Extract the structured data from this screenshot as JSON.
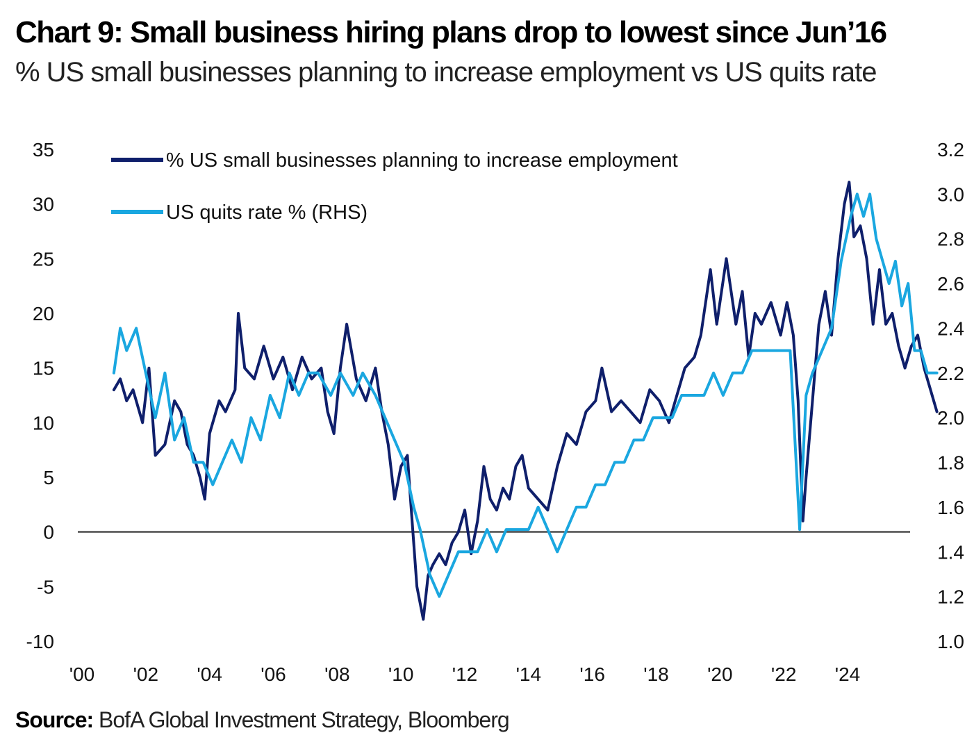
{
  "title": "Chart 9: Small business hiring plans drop to lowest since Jun’16",
  "subtitle": "% US small businesses planning to increase employment vs US quits rate",
  "source_label": "Source:",
  "source_text": " BofA Global Investment Strategy, Bloomberg",
  "chart_data": {
    "type": "line",
    "title": "Chart 9: Small business hiring plans drop to lowest since Jun’16",
    "subtitle": "% US small businesses planning to increase employment vs US quits rate",
    "x_ticks": [
      "'00",
      "'02",
      "'04",
      "'06",
      "'08",
      "'10",
      "'12",
      "'14",
      "'16",
      "'18",
      "'20",
      "'22",
      "'24"
    ],
    "x_range": [
      2000,
      2026
    ],
    "y_left": {
      "range": [
        -10,
        35
      ],
      "ticks": [
        "35",
        "30",
        "25",
        "20",
        "15",
        "10",
        "5",
        "0",
        "-5",
        "-10"
      ]
    },
    "y_right": {
      "range": [
        1.0,
        3.2
      ],
      "ticks": [
        "3.2",
        "3.0",
        "2.8",
        "2.6",
        "2.4",
        "2.2",
        "2.0",
        "1.8",
        "1.6",
        "1.4",
        "1.2",
        "1.0"
      ]
    },
    "legend_placement": "top-left",
    "zero_line": true,
    "series": [
      {
        "name": "% US small businesses planning to increase employment",
        "axis": "left",
        "color": "#0f1f6b",
        "points": [
          [
            2001.0,
            13
          ],
          [
            2001.2,
            14
          ],
          [
            2001.4,
            12
          ],
          [
            2001.6,
            13
          ],
          [
            2001.9,
            10
          ],
          [
            2002.1,
            15
          ],
          [
            2002.3,
            7
          ],
          [
            2002.6,
            8
          ],
          [
            2002.9,
            12
          ],
          [
            2003.1,
            11
          ],
          [
            2003.3,
            8
          ],
          [
            2003.5,
            7
          ],
          [
            2003.7,
            5
          ],
          [
            2003.85,
            3
          ],
          [
            2004.0,
            9
          ],
          [
            2004.3,
            12
          ],
          [
            2004.5,
            11
          ],
          [
            2004.8,
            13
          ],
          [
            2004.9,
            20
          ],
          [
            2005.1,
            15
          ],
          [
            2005.4,
            14
          ],
          [
            2005.7,
            17
          ],
          [
            2006.0,
            14
          ],
          [
            2006.3,
            16
          ],
          [
            2006.6,
            13
          ],
          [
            2006.9,
            16
          ],
          [
            2007.2,
            14
          ],
          [
            2007.5,
            15
          ],
          [
            2007.7,
            11
          ],
          [
            2007.9,
            9
          ],
          [
            2008.1,
            15
          ],
          [
            2008.3,
            19
          ],
          [
            2008.6,
            14
          ],
          [
            2008.9,
            12
          ],
          [
            2009.2,
            15
          ],
          [
            2009.4,
            11
          ],
          [
            2009.6,
            8
          ],
          [
            2009.8,
            3
          ],
          [
            2010.0,
            6
          ],
          [
            2010.2,
            7
          ],
          [
            2010.3,
            3
          ],
          [
            2010.5,
            -5
          ],
          [
            2010.7,
            -8
          ],
          [
            2010.85,
            -4
          ],
          [
            2011.0,
            -3
          ],
          [
            2011.2,
            -2
          ],
          [
            2011.4,
            -3
          ],
          [
            2011.6,
            -1
          ],
          [
            2011.8,
            0
          ],
          [
            2012.0,
            2
          ],
          [
            2012.2,
            -2
          ],
          [
            2012.4,
            1
          ],
          [
            2012.6,
            6
          ],
          [
            2012.8,
            3
          ],
          [
            2013.0,
            2
          ],
          [
            2013.2,
            4
          ],
          [
            2013.4,
            3
          ],
          [
            2013.6,
            6
          ],
          [
            2013.8,
            7
          ],
          [
            2014.0,
            4
          ],
          [
            2014.3,
            3
          ],
          [
            2014.6,
            2
          ],
          [
            2014.9,
            6
          ],
          [
            2015.2,
            9
          ],
          [
            2015.5,
            8
          ],
          [
            2015.8,
            11
          ],
          [
            2016.1,
            12
          ],
          [
            2016.3,
            15
          ],
          [
            2016.6,
            11
          ],
          [
            2016.9,
            12
          ],
          [
            2017.2,
            11
          ],
          [
            2017.5,
            10
          ],
          [
            2017.8,
            13
          ],
          [
            2018.1,
            12
          ],
          [
            2018.4,
            10
          ],
          [
            2018.6,
            12
          ],
          [
            2018.9,
            15
          ],
          [
            2019.2,
            16
          ],
          [
            2019.4,
            18
          ],
          [
            2019.7,
            24
          ],
          [
            2019.9,
            19
          ],
          [
            2020.2,
            25
          ],
          [
            2020.5,
            19
          ],
          [
            2020.7,
            22
          ],
          [
            2020.9,
            16
          ],
          [
            2021.1,
            20
          ],
          [
            2021.3,
            19
          ],
          [
            2021.6,
            21
          ],
          [
            2021.9,
            18
          ],
          [
            2022.1,
            21
          ],
          [
            2022.3,
            18
          ],
          [
            2022.45,
            12
          ],
          [
            2022.6,
            1
          ],
          [
            2022.7,
            5
          ],
          [
            2022.9,
            12
          ],
          [
            2023.1,
            19
          ],
          [
            2023.3,
            22
          ],
          [
            2023.5,
            18
          ],
          [
            2023.7,
            25
          ],
          [
            2023.9,
            30
          ],
          [
            2024.05,
            32
          ],
          [
            2024.2,
            27
          ],
          [
            2024.4,
            28
          ],
          [
            2024.6,
            25
          ],
          [
            2024.8,
            19
          ],
          [
            2025.0,
            24
          ],
          [
            2025.2,
            19
          ],
          [
            2025.4,
            20
          ],
          [
            2025.6,
            17
          ],
          [
            2025.8,
            15
          ],
          [
            2026.0,
            17
          ],
          [
            2026.2,
            18
          ],
          [
            2026.4,
            15
          ],
          [
            2026.6,
            13
          ],
          [
            2026.8,
            11
          ]
        ]
      },
      {
        "name": "US quits rate % (RHS)",
        "axis": "right",
        "color": "#1aa7e0",
        "points": [
          [
            2001.0,
            2.2
          ],
          [
            2001.2,
            2.4
          ],
          [
            2001.4,
            2.3
          ],
          [
            2001.7,
            2.4
          ],
          [
            2002.0,
            2.2
          ],
          [
            2002.3,
            2.0
          ],
          [
            2002.6,
            2.2
          ],
          [
            2002.9,
            1.9
          ],
          [
            2003.2,
            2.0
          ],
          [
            2003.5,
            1.8
          ],
          [
            2003.8,
            1.8
          ],
          [
            2004.1,
            1.7
          ],
          [
            2004.4,
            1.8
          ],
          [
            2004.7,
            1.9
          ],
          [
            2005.0,
            1.8
          ],
          [
            2005.3,
            2.0
          ],
          [
            2005.6,
            1.9
          ],
          [
            2005.9,
            2.1
          ],
          [
            2006.2,
            2.0
          ],
          [
            2006.5,
            2.2
          ],
          [
            2006.8,
            2.1
          ],
          [
            2007.1,
            2.2
          ],
          [
            2007.4,
            2.2
          ],
          [
            2007.8,
            2.1
          ],
          [
            2008.1,
            2.2
          ],
          [
            2008.5,
            2.1
          ],
          [
            2008.8,
            2.2
          ],
          [
            2009.2,
            2.1
          ],
          [
            2009.5,
            2.0
          ],
          [
            2009.8,
            1.9
          ],
          [
            2010.1,
            1.8
          ],
          [
            2010.4,
            1.6
          ],
          [
            2010.6,
            1.5
          ],
          [
            2010.9,
            1.3
          ],
          [
            2011.2,
            1.2
          ],
          [
            2011.5,
            1.3
          ],
          [
            2011.8,
            1.4
          ],
          [
            2012.1,
            1.4
          ],
          [
            2012.4,
            1.4
          ],
          [
            2012.7,
            1.5
          ],
          [
            2013.0,
            1.4
          ],
          [
            2013.3,
            1.5
          ],
          [
            2013.7,
            1.5
          ],
          [
            2014.0,
            1.5
          ],
          [
            2014.3,
            1.6
          ],
          [
            2014.6,
            1.5
          ],
          [
            2014.9,
            1.4
          ],
          [
            2015.2,
            1.5
          ],
          [
            2015.5,
            1.6
          ],
          [
            2015.8,
            1.6
          ],
          [
            2016.1,
            1.7
          ],
          [
            2016.4,
            1.7
          ],
          [
            2016.7,
            1.8
          ],
          [
            2017.0,
            1.8
          ],
          [
            2017.3,
            1.9
          ],
          [
            2017.6,
            1.9
          ],
          [
            2017.9,
            2.0
          ],
          [
            2018.2,
            2.0
          ],
          [
            2018.5,
            2.0
          ],
          [
            2018.8,
            2.1
          ],
          [
            2019.1,
            2.1
          ],
          [
            2019.5,
            2.1
          ],
          [
            2019.8,
            2.2
          ],
          [
            2020.1,
            2.1
          ],
          [
            2020.4,
            2.2
          ],
          [
            2020.7,
            2.2
          ],
          [
            2021.0,
            2.3
          ],
          [
            2021.4,
            2.3
          ],
          [
            2021.8,
            2.3
          ],
          [
            2022.2,
            2.3
          ],
          [
            2022.5,
            1.5
          ],
          [
            2022.7,
            2.1
          ],
          [
            2022.9,
            2.2
          ],
          [
            2023.2,
            2.3
          ],
          [
            2023.5,
            2.4
          ],
          [
            2023.8,
            2.7
          ],
          [
            2024.1,
            2.9
          ],
          [
            2024.3,
            3.0
          ],
          [
            2024.5,
            2.9
          ],
          [
            2024.7,
            3.0
          ],
          [
            2024.9,
            2.8
          ],
          [
            2025.1,
            2.7
          ],
          [
            2025.3,
            2.6
          ],
          [
            2025.5,
            2.7
          ],
          [
            2025.7,
            2.5
          ],
          [
            2025.9,
            2.6
          ],
          [
            2026.1,
            2.3
          ],
          [
            2026.3,
            2.3
          ],
          [
            2026.5,
            2.2
          ],
          [
            2026.8,
            2.2
          ]
        ]
      }
    ]
  }
}
